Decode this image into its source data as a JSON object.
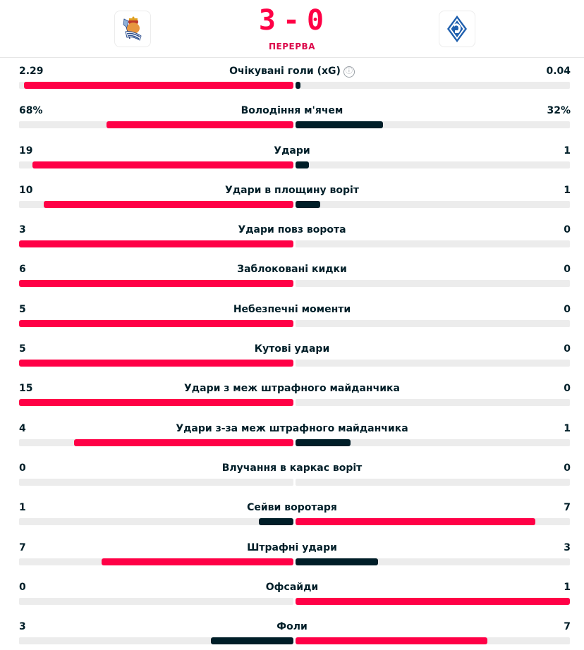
{
  "header": {
    "home_team_logo": "real-sociedad-crest",
    "away_team_logo": "dynamo-kyiv-crest",
    "score_home": "3",
    "score_separator": "-",
    "score_away": "0",
    "status": "ПЕРЕРВА"
  },
  "colors": {
    "leader": "#ff0046",
    "trailer": "#001e28",
    "track": "#ececec",
    "score": "#ff0046"
  },
  "stats": [
    {
      "label": "Очікувані голи (xG)",
      "home": "2.29",
      "away": "0.04",
      "home_pct": 98.3,
      "away_pct": 1.7,
      "leader": "home",
      "info_icon": "ⓘ"
    },
    {
      "label": "Володіння м'ячем",
      "home": "68%",
      "away": "32%",
      "home_pct": 68,
      "away_pct": 32,
      "leader": "home"
    },
    {
      "label": "Удари",
      "home": "19",
      "away": "1",
      "home_pct": 95,
      "away_pct": 5,
      "leader": "home"
    },
    {
      "label": "Удари в площину воріт",
      "home": "10",
      "away": "1",
      "home_pct": 90.9,
      "away_pct": 9.1,
      "leader": "home"
    },
    {
      "label": "Удари повз ворота",
      "home": "3",
      "away": "0",
      "home_pct": 100,
      "away_pct": 0,
      "leader": "home"
    },
    {
      "label": "Заблоковані кидки",
      "home": "6",
      "away": "0",
      "home_pct": 100,
      "away_pct": 0,
      "leader": "home"
    },
    {
      "label": "Небезпечні моменти",
      "home": "5",
      "away": "0",
      "home_pct": 100,
      "away_pct": 0,
      "leader": "home"
    },
    {
      "label": "Кутові удари",
      "home": "5",
      "away": "0",
      "home_pct": 100,
      "away_pct": 0,
      "leader": "home"
    },
    {
      "label": "Удари з меж штрафного майданчика",
      "home": "15",
      "away": "0",
      "home_pct": 100,
      "away_pct": 0,
      "leader": "home"
    },
    {
      "label": "Удари з-за меж штрафного майданчика",
      "home": "4",
      "away": "1",
      "home_pct": 80,
      "away_pct": 20,
      "leader": "home"
    },
    {
      "label": "Влучання в каркас воріт",
      "home": "0",
      "away": "0",
      "home_pct": 0,
      "away_pct": 0,
      "leader": "none"
    },
    {
      "label": "Сейви воротаря",
      "home": "1",
      "away": "7",
      "home_pct": 12.5,
      "away_pct": 87.5,
      "leader": "away"
    },
    {
      "label": "Штрафні удари",
      "home": "7",
      "away": "3",
      "home_pct": 70,
      "away_pct": 30,
      "leader": "home"
    },
    {
      "label": "Офсайди",
      "home": "0",
      "away": "1",
      "home_pct": 0,
      "away_pct": 100,
      "leader": "away"
    },
    {
      "label": "Фоли",
      "home": "3",
      "away": "7",
      "home_pct": 30,
      "away_pct": 70,
      "leader": "away"
    }
  ]
}
